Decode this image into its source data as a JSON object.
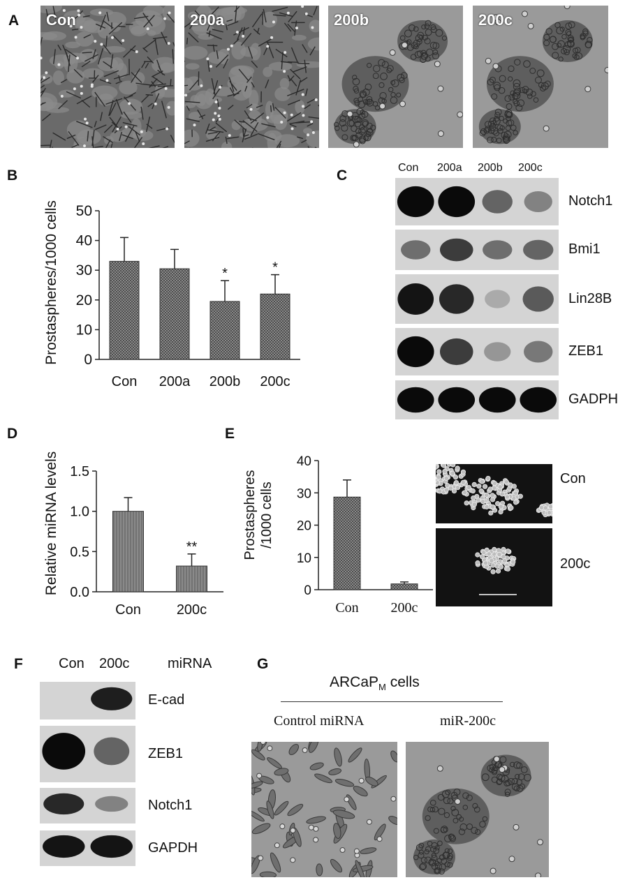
{
  "panels": {
    "A": {
      "label": "A",
      "images": [
        {
          "label": "Con",
          "type": "network"
        },
        {
          "label": "200a",
          "type": "network"
        },
        {
          "label": "200b",
          "type": "cluster"
        },
        {
          "label": "200c",
          "type": "cluster"
        }
      ]
    },
    "B": {
      "label": "B"
    },
    "C": {
      "label": "C",
      "lanes": [
        "Con",
        "200a",
        "200b",
        "200c"
      ],
      "rows": [
        {
          "protein": "Notch1",
          "intensity": [
            1.0,
            1.0,
            0.55,
            0.4
          ]
        },
        {
          "protein": "Bmi1",
          "intensity": [
            0.5,
            0.75,
            0.5,
            0.55
          ]
        },
        {
          "protein": "Lin28B",
          "intensity": [
            0.95,
            0.85,
            0.2,
            0.6
          ]
        },
        {
          "protein": "ZEB1",
          "intensity": [
            1.0,
            0.75,
            0.3,
            0.45
          ]
        },
        {
          "protein": "GADPH",
          "intensity": [
            1.0,
            1.0,
            1.0,
            1.0
          ]
        }
      ]
    },
    "D": {
      "label": "D"
    },
    "E": {
      "label": "E",
      "image_labels": [
        "Con",
        "200c"
      ]
    },
    "F": {
      "label": "F",
      "lanes": [
        "Con",
        "200c"
      ],
      "lane_header": "miRNA",
      "rows": [
        {
          "protein": "E-cad",
          "intensity": [
            0.0,
            0.9
          ]
        },
        {
          "protein": "ZEB1",
          "intensity": [
            1.0,
            0.55
          ]
        },
        {
          "protein": "Notch1",
          "intensity": [
            0.85,
            0.4
          ]
        },
        {
          "protein": "GAPDH",
          "intensity": [
            0.95,
            0.95
          ]
        }
      ]
    },
    "G": {
      "label": "G",
      "title_main": "ARCaP",
      "title_sub": "M",
      "title_tail": " cells",
      "images": [
        {
          "label": "Control miRNA",
          "type": "scattered"
        },
        {
          "label": "miR-200c",
          "type": "cluster"
        }
      ]
    }
  },
  "chart_data": [
    {
      "panel": "B",
      "type": "bar",
      "categories": [
        "Con",
        "200a",
        "200b",
        "200c"
      ],
      "values": [
        33,
        30.5,
        19.5,
        22
      ],
      "errors": [
        8,
        6.5,
        7,
        6.5
      ],
      "annotations": [
        "",
        "",
        "*",
        "*"
      ],
      "ylabel": "Prostaspheres/1000 cells",
      "ylim": [
        0,
        50
      ],
      "yticks": [
        "0",
        "10",
        "20",
        "30",
        "40",
        "50"
      ]
    },
    {
      "panel": "D",
      "type": "bar",
      "categories": [
        "Con",
        "200c"
      ],
      "values": [
        1.0,
        0.32
      ],
      "errors": [
        0.17,
        0.15
      ],
      "annotations": [
        "",
        "**"
      ],
      "ylabel": "Relative miRNA levels",
      "ylim": [
        0,
        1.5
      ],
      "yticks": [
        "0.0",
        "0.5",
        "1.0",
        "1.5"
      ]
    },
    {
      "panel": "E",
      "type": "bar",
      "categories": [
        "Con",
        "200c"
      ],
      "values": [
        28.7,
        1.8
      ],
      "errors": [
        5.3,
        0.6
      ],
      "annotations": [
        "",
        ""
      ],
      "ylabel_lines": [
        "Prostaspheres",
        "/1000 cells"
      ],
      "ylim": [
        0,
        40
      ],
      "yticks": [
        "0",
        "10",
        "20",
        "30",
        "40"
      ]
    }
  ]
}
